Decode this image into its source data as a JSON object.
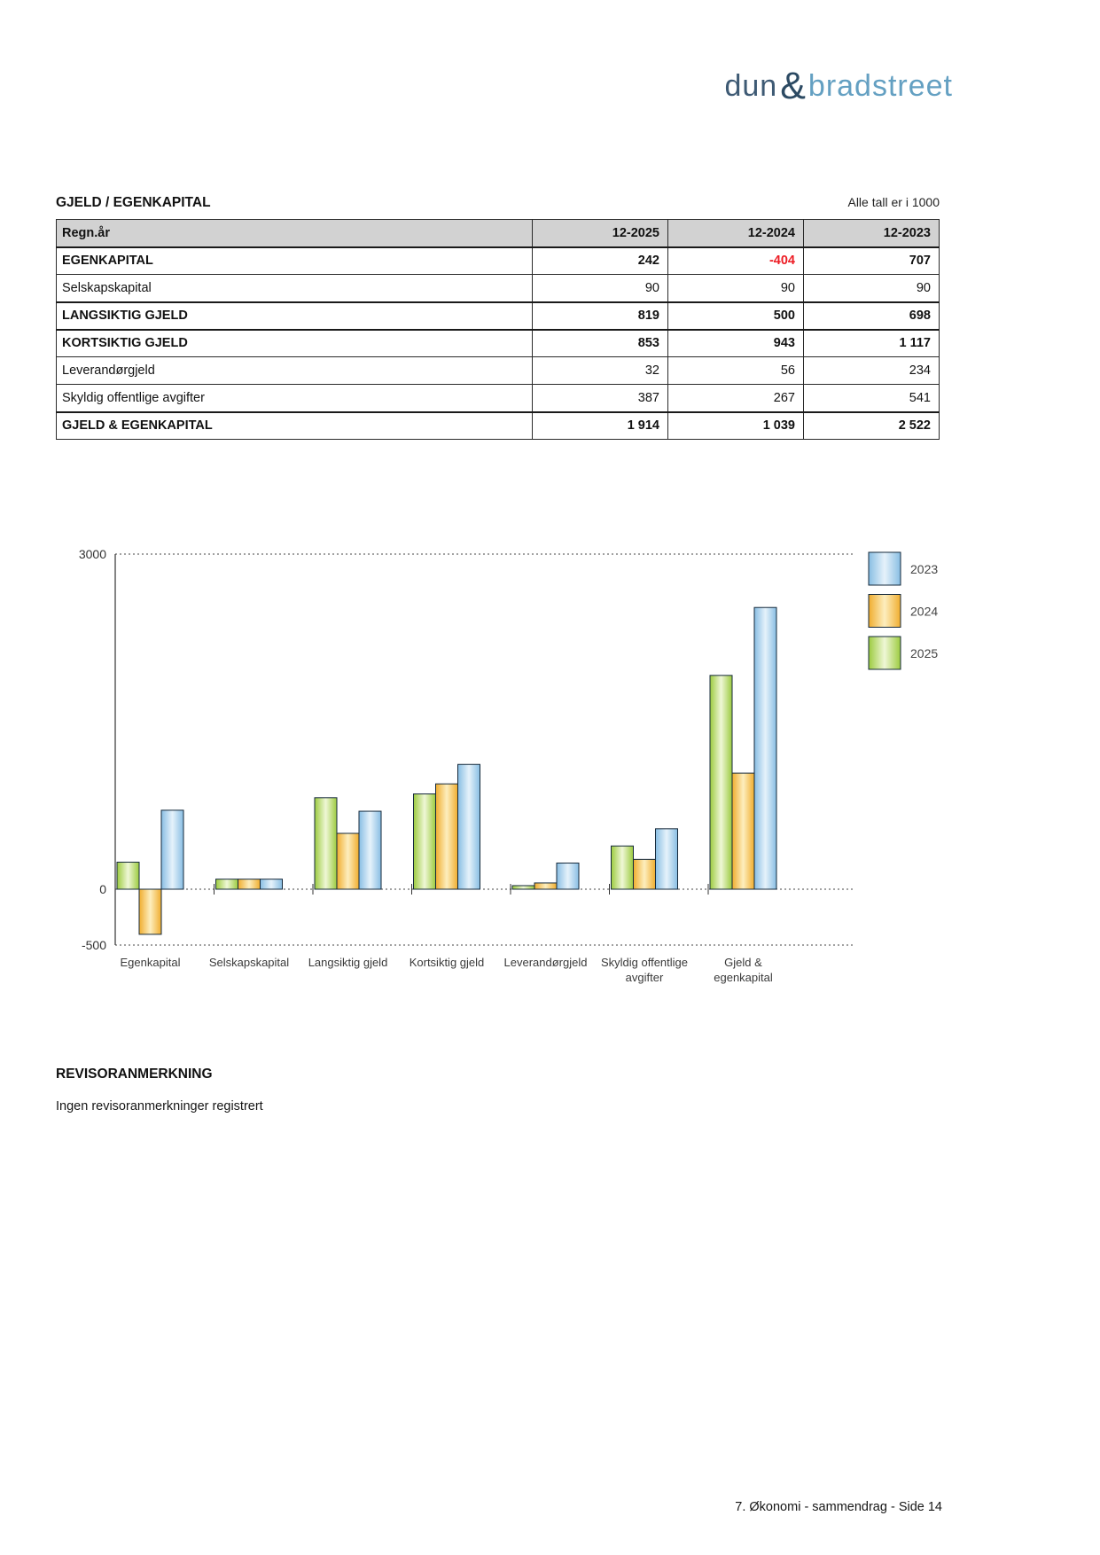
{
  "logo": {
    "dun": "dun",
    "amp": "&",
    "bradstreet": "bradstreet"
  },
  "table": {
    "title": "GJELD / EGENKAPITAL",
    "note": "Alle tall er i 1000",
    "header": {
      "label": "Regn.år",
      "cols": [
        "12-2025",
        "12-2024",
        "12-2023"
      ]
    },
    "rows": [
      {
        "label": "EGENKAPITAL",
        "bold": true,
        "values": [
          "242",
          "-404",
          "707"
        ]
      },
      {
        "label": "Selskapskapital",
        "bold": false,
        "values": [
          "90",
          "90",
          "90"
        ]
      },
      {
        "label": "LANGSIKTIG GJELD",
        "bold": true,
        "values": [
          "819",
          "500",
          "698"
        ]
      },
      {
        "label": "KORTSIKTIG GJELD",
        "bold": true,
        "values": [
          "853",
          "943",
          "1 117"
        ]
      },
      {
        "label": "Leverandørgjeld",
        "bold": false,
        "values": [
          "32",
          "56",
          "234"
        ]
      },
      {
        "label": "Skyldig offentlige avgifter",
        "bold": false,
        "values": [
          "387",
          "267",
          "541"
        ]
      },
      {
        "label": "GJELD & EGENKAPITAL",
        "bold": true,
        "values": [
          "1 914",
          "1 039",
          "2 522"
        ]
      }
    ]
  },
  "chart_data": {
    "type": "bar",
    "title": "",
    "categories": [
      "Egenkapital",
      "Selskapskapital",
      "Langsiktig gjeld",
      "Kortsiktig gjeld",
      "Leverandørgjeld",
      "Skyldig offentlige avgifter",
      "Gjeld & egenkapital"
    ],
    "categories_lines": [
      [
        "Egenkapital"
      ],
      [
        "Selskapskapital"
      ],
      [
        "Langsiktig gjeld"
      ],
      [
        "Kortsiktig gjeld"
      ],
      [
        "Leverandørgjeld"
      ],
      [
        "Skyldig offentlige",
        "avgifter"
      ],
      [
        "Gjeld &",
        "egenkapital"
      ]
    ],
    "series": [
      {
        "name": "2025",
        "values": [
          242,
          90,
          819,
          853,
          32,
          387,
          1914
        ],
        "color_edge": "#9ccb3f",
        "color_mid": "#eff7d6"
      },
      {
        "name": "2024",
        "values": [
          -404,
          90,
          500,
          943,
          56,
          267,
          1039
        ],
        "color_edge": "#f0ad2e",
        "color_mid": "#fdeebe"
      },
      {
        "name": "2023",
        "values": [
          707,
          90,
          698,
          1117,
          234,
          541,
          2522
        ],
        "color_edge": "#88bee3",
        "color_mid": "#e6f2fb"
      }
    ],
    "legend_order": [
      "2023",
      "2024",
      "2025"
    ],
    "legend_position": "right",
    "ylim": [
      -500,
      3000
    ],
    "yticks": [
      3000,
      0,
      -500
    ],
    "grid": "dashed-horizontal",
    "bar_outline": "#15293b"
  },
  "revisor": {
    "heading": "REVISORANMERKNING",
    "text": "Ingen revisoranmerkninger registrert"
  },
  "footer": "7. Økonomi - sammendrag - Side 14"
}
